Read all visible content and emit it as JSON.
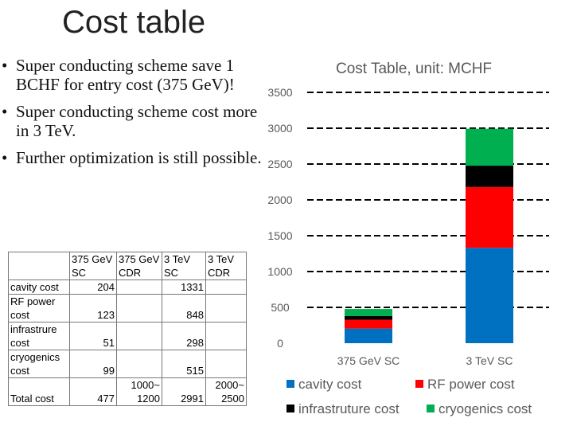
{
  "slide": {
    "title": "Cost table",
    "bullets": [
      "Super conducting scheme save 1 BCHF for entry cost (375 GeV)!",
      "Super conducting scheme cost more in 3 TeV.",
      "Further optimization is still possible."
    ]
  },
  "table": {
    "headers": [
      "375 GeV SC",
      "375 GeV CDR",
      "3 TeV SC",
      "3 TeV CDR"
    ],
    "rows": [
      {
        "label": "cavity cost",
        "values": [
          "204",
          "",
          "1331",
          ""
        ]
      },
      {
        "label": "RF power cost",
        "values": [
          "123",
          "",
          "848",
          ""
        ]
      },
      {
        "label": "infrastrure cost",
        "values": [
          "51",
          "",
          "298",
          ""
        ]
      },
      {
        "label": "cryogenics cost",
        "values": [
          "99",
          "",
          "515",
          ""
        ]
      },
      {
        "label": "Total cost",
        "values": [
          "477",
          "1000~ 1200",
          "2991",
          "2000~ 2500"
        ]
      }
    ]
  },
  "chart_data": {
    "type": "bar",
    "stacked": true,
    "title": "Cost Table, unit: MCHF",
    "categories": [
      "375 GeV SC",
      "3 TeV SC"
    ],
    "series": [
      {
        "name": "cavity cost",
        "values": [
          204,
          1331
        ],
        "color": "#0070c0"
      },
      {
        "name": "RF power cost",
        "values": [
          123,
          848
        ],
        "color": "#ff0000"
      },
      {
        "name": "infrastruture cost",
        "values": [
          51,
          298
        ],
        "color": "#000000"
      },
      {
        "name": "cryogenics cost",
        "values": [
          99,
          515
        ],
        "color": "#00b050"
      }
    ],
    "yticks": [
      0,
      500,
      1000,
      1500,
      2000,
      2500,
      3000,
      3500
    ],
    "ylim": [
      0,
      3500
    ],
    "grid": true,
    "grid_style": "dashed",
    "legend_position": "bottom"
  }
}
